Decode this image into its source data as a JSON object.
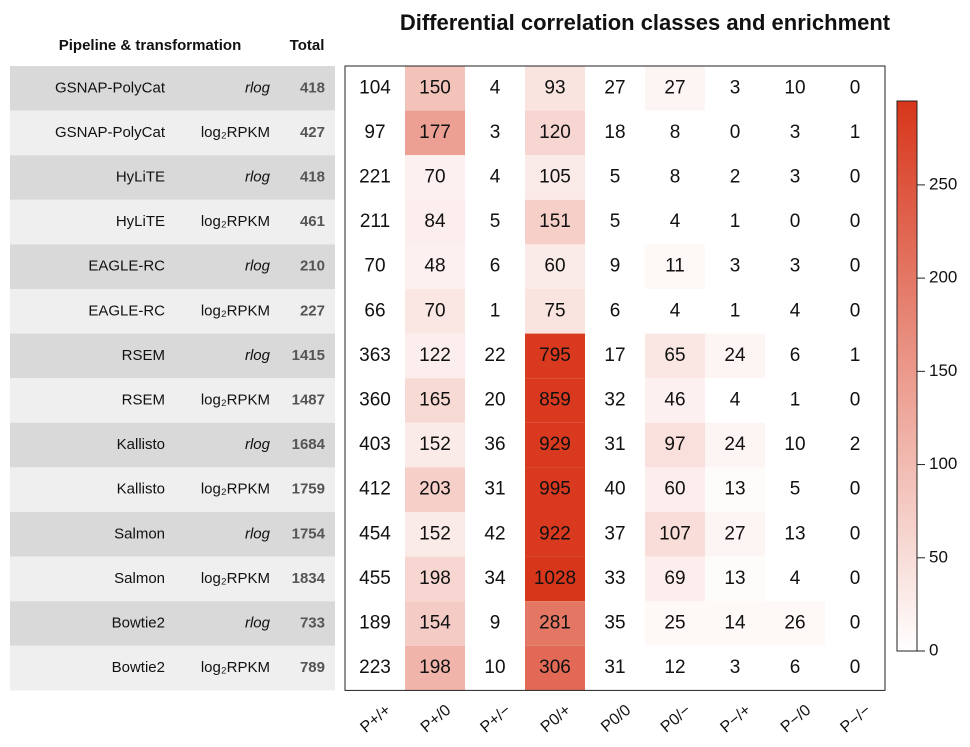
{
  "chart_data": {
    "type": "heatmap",
    "title": "Differential correlation classes and enrichment",
    "header": {
      "pipeline": "Pipeline & transformation",
      "total": "Total"
    },
    "categories": [
      "P+/+",
      "P+/0",
      "P+/−",
      "P0/+",
      "P0/0",
      "P0/−",
      "P−/+",
      "P−/0",
      "P−/−"
    ],
    "rows": [
      {
        "pipeline": "GSNAP-PolyCat",
        "transformation": "rlog",
        "total": 418,
        "values": [
          104,
          150,
          4,
          93,
          27,
          27,
          3,
          10,
          0
        ],
        "enrichment": [
          0,
          90,
          0,
          40,
          0,
          15,
          0,
          0,
          0
        ]
      },
      {
        "pipeline": "GSNAP-PolyCat",
        "transformation": "log₂RPKM",
        "total": 427,
        "values": [
          97,
          177,
          3,
          120,
          18,
          8,
          0,
          3,
          1
        ],
        "enrichment": [
          0,
          140,
          0,
          60,
          0,
          0,
          0,
          0,
          0
        ]
      },
      {
        "pipeline": "HyLiTE",
        "transformation": "rlog",
        "total": 418,
        "values": [
          221,
          70,
          4,
          105,
          5,
          8,
          2,
          3,
          0
        ],
        "enrichment": [
          0,
          20,
          0,
          30,
          0,
          0,
          0,
          0,
          0
        ]
      },
      {
        "pipeline": "HyLiTE",
        "transformation": "log₂RPKM",
        "total": 461,
        "values": [
          211,
          84,
          5,
          151,
          5,
          4,
          1,
          0,
          0
        ],
        "enrichment": [
          0,
          25,
          0,
          70,
          0,
          0,
          0,
          0,
          0
        ]
      },
      {
        "pipeline": "EAGLE-RC",
        "transformation": "rlog",
        "total": 210,
        "values": [
          70,
          48,
          6,
          60,
          9,
          11,
          3,
          3,
          0
        ],
        "enrichment": [
          0,
          20,
          0,
          30,
          0,
          10,
          0,
          0,
          0
        ]
      },
      {
        "pipeline": "EAGLE-RC",
        "transformation": "log₂RPKM",
        "total": 227,
        "values": [
          66,
          70,
          1,
          75,
          6,
          4,
          1,
          4,
          0
        ],
        "enrichment": [
          0,
          35,
          0,
          40,
          0,
          0,
          0,
          0,
          0
        ]
      },
      {
        "pipeline": "RSEM",
        "transformation": "rlog",
        "total": 1415,
        "values": [
          363,
          122,
          22,
          795,
          17,
          65,
          24,
          6,
          1
        ],
        "enrichment": [
          0,
          25,
          0,
          290,
          0,
          35,
          15,
          0,
          0
        ]
      },
      {
        "pipeline": "RSEM",
        "transformation": "log₂RPKM",
        "total": 1487,
        "values": [
          360,
          165,
          20,
          859,
          32,
          46,
          4,
          1,
          0
        ],
        "enrichment": [
          0,
          55,
          0,
          290,
          0,
          20,
          0,
          0,
          0
        ]
      },
      {
        "pipeline": "Kallisto",
        "transformation": "rlog",
        "total": 1684,
        "values": [
          403,
          152,
          36,
          929,
          31,
          97,
          24,
          10,
          2
        ],
        "enrichment": [
          0,
          30,
          0,
          290,
          0,
          45,
          15,
          0,
          0
        ]
      },
      {
        "pipeline": "Kallisto",
        "transformation": "log₂RPKM",
        "total": 1759,
        "values": [
          412,
          203,
          31,
          995,
          40,
          60,
          13,
          5,
          0
        ],
        "enrichment": [
          0,
          70,
          0,
          290,
          0,
          25,
          5,
          0,
          0
        ]
      },
      {
        "pipeline": "Salmon",
        "transformation": "rlog",
        "total": 1754,
        "values": [
          454,
          152,
          42,
          922,
          37,
          107,
          27,
          13,
          0
        ],
        "enrichment": [
          0,
          30,
          0,
          290,
          0,
          50,
          15,
          0,
          0
        ]
      },
      {
        "pipeline": "Salmon",
        "transformation": "log₂RPKM",
        "total": 1834,
        "values": [
          455,
          198,
          34,
          1028,
          33,
          69,
          13,
          4,
          0
        ],
        "enrichment": [
          0,
          60,
          0,
          295,
          0,
          25,
          5,
          0,
          0
        ]
      },
      {
        "pipeline": "Bowtie2",
        "transformation": "rlog",
        "total": 733,
        "values": [
          189,
          154,
          9,
          281,
          35,
          25,
          14,
          26,
          0
        ],
        "enrichment": [
          0,
          75,
          0,
          200,
          0,
          10,
          10,
          10,
          0
        ]
      },
      {
        "pipeline": "Bowtie2",
        "transformation": "log₂RPKM",
        "total": 789,
        "values": [
          223,
          198,
          10,
          306,
          31,
          12,
          3,
          6,
          0
        ],
        "enrichment": [
          0,
          110,
          0,
          220,
          0,
          0,
          0,
          0,
          0
        ]
      }
    ],
    "zlim": [
      0,
      295
    ],
    "zticks": [
      0,
      50,
      100,
      150,
      200,
      250
    ],
    "colors": [
      "#ffffff",
      "#d7361b"
    ]
  }
}
